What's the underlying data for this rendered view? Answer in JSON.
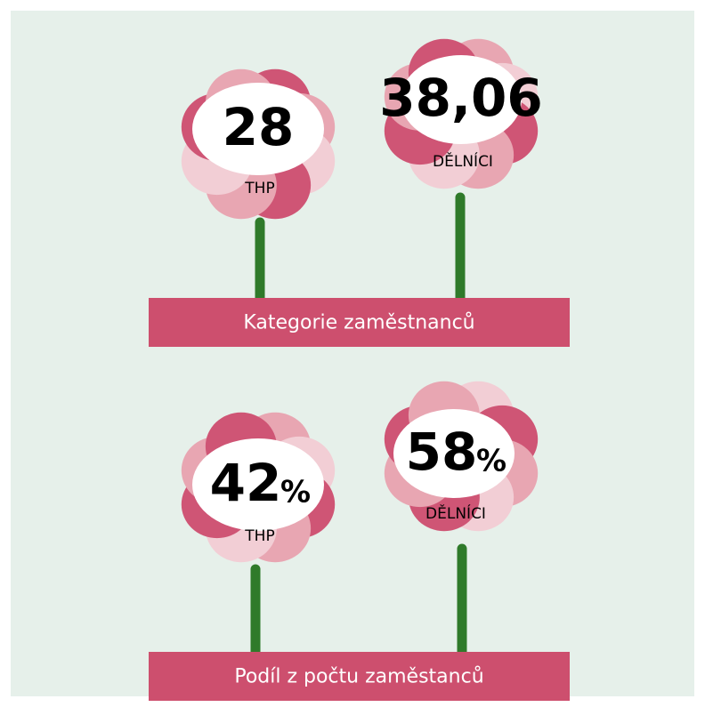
{
  "panels": [
    {
      "title": "Kategorie zaměstnanců",
      "flowers": [
        {
          "value": "28",
          "label": "THP"
        },
        {
          "value": "38,06",
          "label": "DĚLNÍCI"
        }
      ]
    },
    {
      "title": "Podíl z počtu zaměstanců",
      "flowers": [
        {
          "value": "42",
          "unit": "%",
          "label": "THP"
        },
        {
          "value": "58",
          "unit": "%",
          "label": "DĚLNÍCI"
        }
      ]
    }
  ]
}
